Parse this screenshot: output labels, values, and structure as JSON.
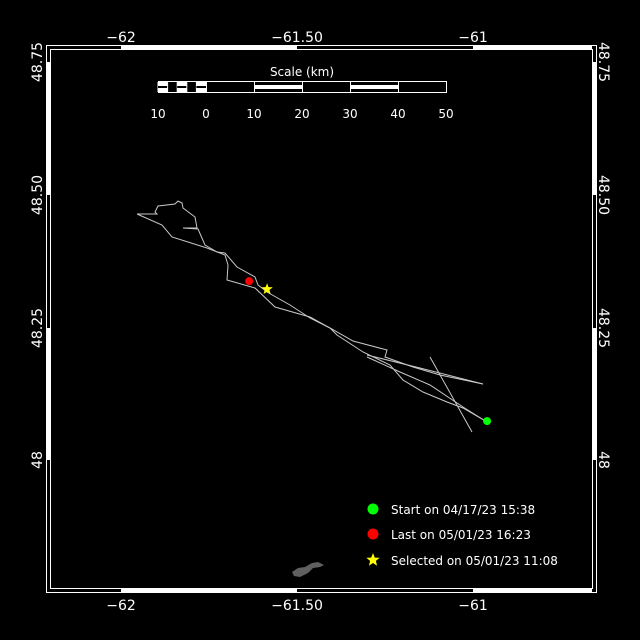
{
  "map": {
    "background": "#000000",
    "frame_color": "#ffffff",
    "lon_ticks": [
      {
        "value": -62,
        "label": "−62"
      },
      {
        "value": -61.5,
        "label": "−61.50"
      },
      {
        "value": -61,
        "label": "−61"
      }
    ],
    "lat_ticks": [
      {
        "value": 48.75,
        "label": "48.75"
      },
      {
        "value": 48.5,
        "label": "48.50"
      },
      {
        "value": 48.25,
        "label": "48.25"
      },
      {
        "value": 48,
        "label": "48"
      }
    ],
    "track_color": "#c8c8c8",
    "land_color": "#606060"
  },
  "scale": {
    "title": "Scale (km)",
    "labels": [
      "10",
      "0",
      "10",
      "20",
      "30",
      "40",
      "50"
    ]
  },
  "markers": {
    "start": {
      "lon": -60.96,
      "lat": 48.075,
      "color": "#00ff00"
    },
    "last": {
      "lon": -61.636,
      "lat": 48.338,
      "color": "#ff0000"
    },
    "selected": {
      "lon": -61.585,
      "lat": 48.323,
      "color": "#ffff00"
    }
  },
  "legend": {
    "items": [
      {
        "symbol": "circle",
        "color": "#00ff00",
        "label": "Start on 04/17/23 15:38"
      },
      {
        "symbol": "circle",
        "color": "#ff0000",
        "label": "Last on 05/01/23 16:23"
      },
      {
        "symbol": "star",
        "color": "#ffff00",
        "label": "Selected on 05/01/23 11:08"
      }
    ]
  }
}
